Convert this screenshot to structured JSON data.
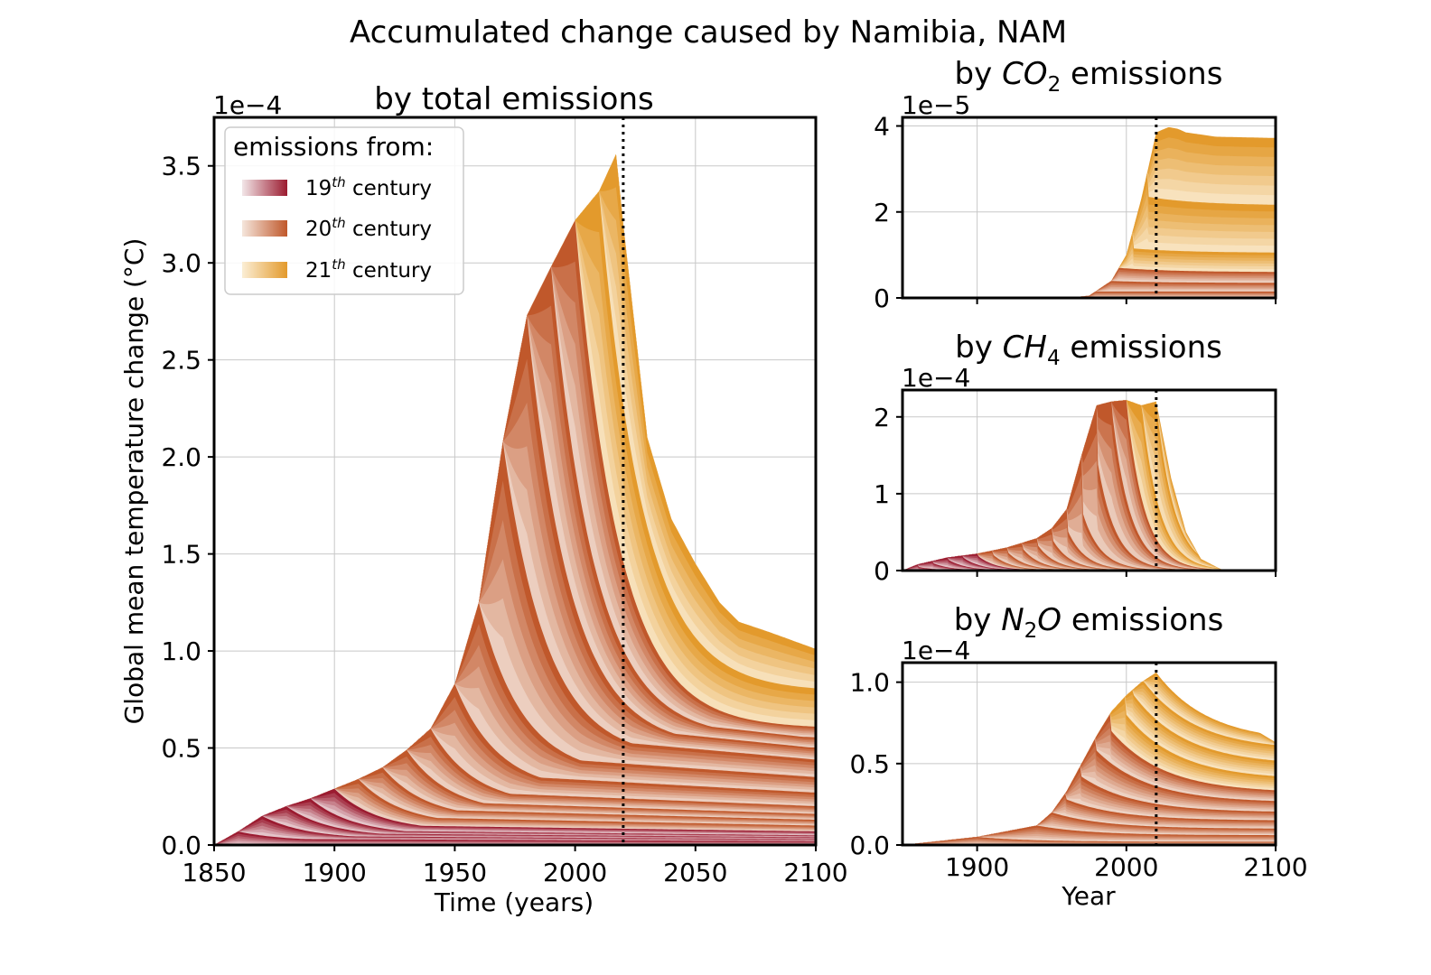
{
  "figure": {
    "suptitle": "Accumulated change caused by Namibia, NAM"
  },
  "legend": {
    "title": "emissions from:",
    "entries": [
      {
        "num": "19",
        "sup": "th",
        "rest": " century",
        "ramp": [
          "#f2e6e8",
          "#9b1b30"
        ]
      },
      {
        "num": "20",
        "sup": "th",
        "rest": " century",
        "ramp": [
          "#f5e6dc",
          "#c0582b"
        ]
      },
      {
        "num": "21",
        "sup": "th",
        "rest": " century",
        "ramp": [
          "#fbeed5",
          "#e39a2c"
        ]
      }
    ]
  },
  "colors": {
    "c19_light": "#f2e6e8",
    "c19_dark": "#9b1b30",
    "c20_light": "#f5e6dc",
    "c20_dark": "#c0582b",
    "c21_light": "#fbeed5",
    "c21_dark": "#e39a2c",
    "grid": "#c8c8c8",
    "refline": "#000000"
  },
  "chart_data": [
    {
      "id": "total",
      "type": "area",
      "title": "by total emissions",
      "xlabel": "Time (years)",
      "ylabel": "Global mean temperature change (°C)",
      "offset_label": "1e−4",
      "xlim": [
        1850,
        2100
      ],
      "ylim": [
        0,
        3.75
      ],
      "xticks": [
        "1850",
        "1900",
        "1950",
        "2000",
        "2050",
        "2100"
      ],
      "yticks": [
        "0.0",
        "0.5",
        "1.0",
        "1.5",
        "2.0",
        "2.5",
        "3.0",
        "3.5"
      ],
      "ref_year": 2020,
      "cohort_step": 10,
      "cohort_years": [
        1850,
        1860,
        1870,
        1880,
        1890,
        1900,
        1910,
        1920,
        1930,
        1940,
        1950,
        1960,
        1970,
        1980,
        1990,
        2000,
        2010,
        2020
      ],
      "cohort_peak": [
        0.07,
        0.15,
        0.2,
        0.24,
        0.29,
        0.34,
        0.4,
        0.49,
        0.6,
        0.83,
        1.25,
        2.08,
        2.73,
        2.98,
        3.22,
        3.37,
        3.56,
        3.56
      ],
      "cohort_2100": [
        0.02,
        0.03,
        0.04,
        0.05,
        0.07,
        0.1,
        0.13,
        0.16,
        0.2,
        0.27,
        0.35,
        0.44,
        0.5,
        0.55,
        0.6,
        0.79,
        1.01,
        1.01
      ],
      "envelope_x": [
        1850,
        1860,
        1870,
        1880,
        1890,
        1900,
        1910,
        1920,
        1930,
        1940,
        1950,
        1960,
        1970,
        1980,
        1990,
        2000,
        2010,
        2017,
        2020,
        2030,
        2040,
        2050,
        2060,
        2068,
        2080,
        2100
      ],
      "envelope_y": [
        0,
        0.07,
        0.15,
        0.2,
        0.24,
        0.29,
        0.34,
        0.4,
        0.49,
        0.6,
        0.83,
        1.25,
        2.08,
        2.73,
        2.98,
        3.22,
        3.37,
        3.56,
        3.2,
        2.1,
        1.68,
        1.45,
        1.25,
        1.15,
        1.1,
        1.01
      ]
    },
    {
      "id": "co2",
      "type": "area",
      "title_pre": "by ",
      "title_sym": "CO",
      "title_sub": "2",
      "title_post": " emissions",
      "offset_label": "1e−5",
      "xlim": [
        1850,
        2100
      ],
      "ylim": [
        0,
        4.2
      ],
      "yticks": [
        "0",
        "2",
        "4"
      ],
      "ytick_values": [
        0,
        2,
        4
      ],
      "ref_year": 2020,
      "envelope_x": [
        1850,
        1960,
        1975,
        1990,
        2000,
        2010,
        2020,
        2030,
        2040,
        2060,
        2100
      ],
      "envelope_y": [
        0,
        0,
        0.05,
        0.4,
        1.0,
        2.3,
        3.85,
        4.0,
        3.85,
        3.75,
        3.72
      ],
      "bands_2100": [
        0.15,
        0.35,
        0.6,
        1.05,
        2.15,
        3.72
      ],
      "bands_peak": [
        0.15,
        0.4,
        0.7,
        1.15,
        2.35,
        4.0
      ],
      "bands_year": [
        1975,
        1985,
        1995,
        2005,
        2015,
        2025
      ]
    },
    {
      "id": "ch4",
      "type": "area",
      "title_pre": "by ",
      "title_sym": "CH",
      "title_sub": "4",
      "title_post": " emissions",
      "offset_label": "1e−4",
      "xlim": [
        1850,
        2100
      ],
      "ylim": [
        0,
        2.35
      ],
      "yticks": [
        "0",
        "1",
        "2"
      ],
      "ytick_values": [
        0,
        1,
        2
      ],
      "ref_year": 2020,
      "cohort_years": [
        1850,
        1860,
        1870,
        1880,
        1890,
        1900,
        1910,
        1920,
        1930,
        1940,
        1950,
        1960,
        1970,
        1980,
        1990,
        2000,
        2010,
        2020
      ],
      "cohort_peak": [
        0.05,
        0.1,
        0.15,
        0.18,
        0.2,
        0.22,
        0.25,
        0.3,
        0.35,
        0.42,
        0.55,
        0.8,
        1.5,
        2.15,
        2.2,
        2.2,
        2.2,
        2.2
      ],
      "envelope_x": [
        1850,
        1860,
        1880,
        1900,
        1920,
        1940,
        1950,
        1960,
        1970,
        1980,
        1990,
        2000,
        2010,
        2020,
        2030,
        2040,
        2050,
        2065,
        2100
      ],
      "envelope_y": [
        0,
        0.08,
        0.17,
        0.22,
        0.3,
        0.42,
        0.55,
        0.8,
        1.5,
        2.15,
        2.2,
        2.22,
        2.15,
        2.2,
        1.2,
        0.5,
        0.15,
        0,
        0
      ]
    },
    {
      "id": "n2o",
      "type": "area",
      "title_pre": "by ",
      "title_sym": "N",
      "title_sub": "2",
      "title_sym2": "O",
      "title_post": " emissions",
      "offset_label": "1e−4",
      "xlabel": "Year",
      "xlim": [
        1850,
        2100
      ],
      "ylim": [
        0,
        1.12
      ],
      "xticks": [
        "1900",
        "2000",
        "2100"
      ],
      "xtick_values": [
        1900,
        2000,
        2100
      ],
      "yticks": [
        "0.0",
        "0.5",
        "1.0"
      ],
      "ytick_values": [
        0,
        0.5,
        1.0
      ],
      "ref_year": 2020,
      "envelope_x": [
        1850,
        1900,
        1940,
        1950,
        1960,
        1970,
        1980,
        1990,
        2000,
        2010,
        2020,
        2030,
        2050,
        2070,
        2100
      ],
      "envelope_y": [
        0,
        0.05,
        0.12,
        0.2,
        0.33,
        0.5,
        0.67,
        0.82,
        0.92,
        1.0,
        1.06,
        1.03,
        0.92,
        0.8,
        0.63
      ],
      "bands_2100": [
        0.02,
        0.06,
        0.1,
        0.15,
        0.2,
        0.26,
        0.32,
        0.4,
        0.49,
        0.58,
        0.63
      ],
      "bands_peak": [
        0.05,
        0.12,
        0.2,
        0.28,
        0.42,
        0.58,
        0.7,
        0.8,
        0.92,
        1.0,
        1.06
      ],
      "bands_year": [
        1900,
        1940,
        1950,
        1960,
        1970,
        1980,
        1990,
        2000,
        2005,
        2012,
        2020
      ]
    }
  ]
}
